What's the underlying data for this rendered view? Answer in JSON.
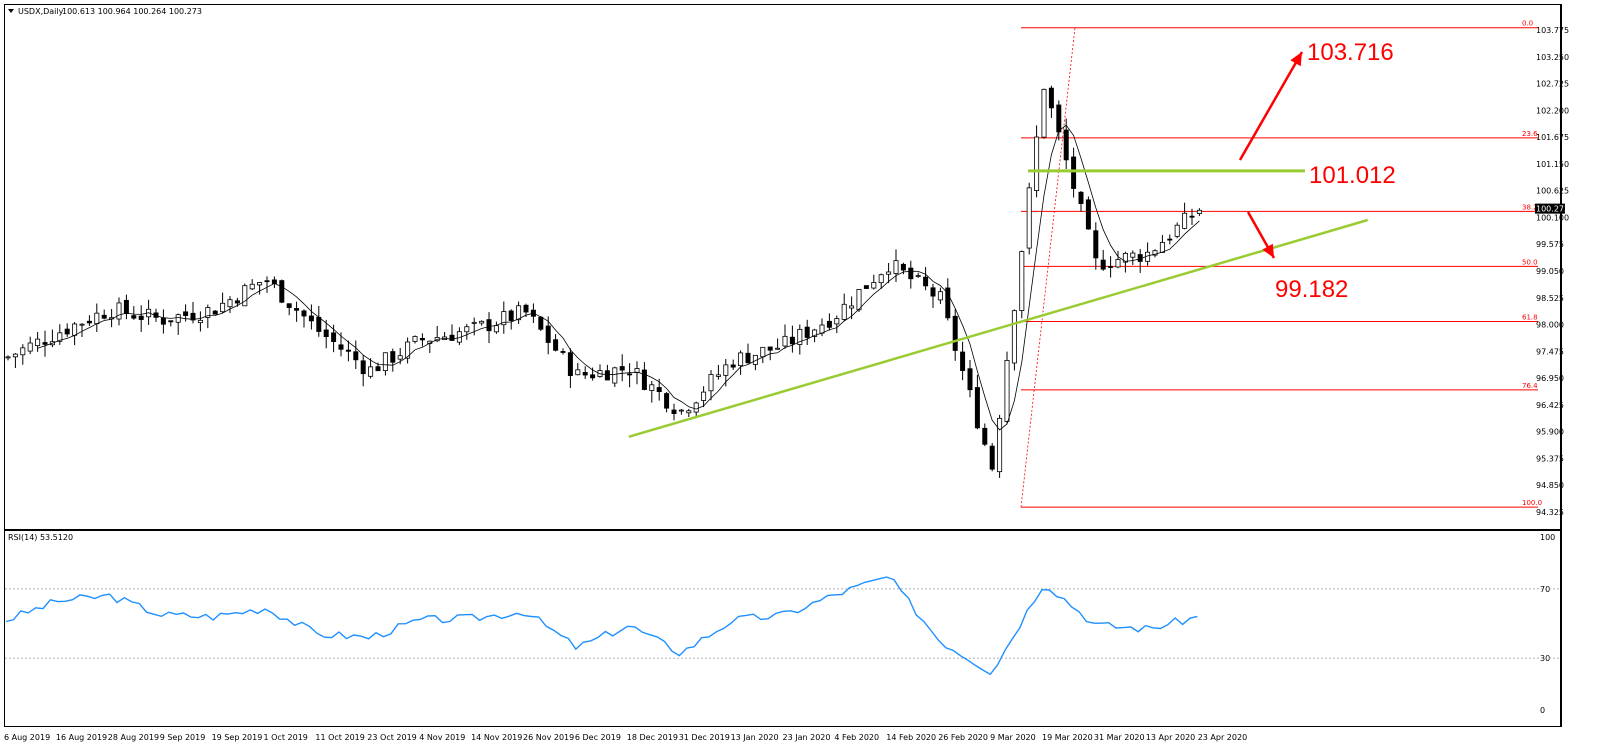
{
  "header": {
    "symbol_info": "USDX,Daily",
    "ohlc": "100.613 100.964 100.264 100.273"
  },
  "rsi_header": {
    "label": "RSI(14) 53.5120"
  },
  "price_axis": {
    "ticks": [
      "103.775",
      "103.250",
      "102.725",
      "102.200",
      "101.675",
      "101.150",
      "100.625",
      "100.100",
      "99.575",
      "99.050",
      "98.525",
      "98.000",
      "97.475",
      "96.950",
      "96.425",
      "95.900",
      "95.375",
      "94.850",
      "94.325"
    ],
    "current_price": "100.273"
  },
  "rsi_axis": {
    "ticks": [
      "100",
      "70",
      "30",
      "0"
    ]
  },
  "date_axis": {
    "ticks": [
      "6 Aug 2019",
      "16 Aug 2019",
      "28 Aug 2019",
      "9 Sep 2019",
      "19 Sep 2019",
      "1 Oct 2019",
      "11 Oct 2019",
      "23 Oct 2019",
      "4 Nov 2019",
      "14 Nov 2019",
      "26 Nov 2019",
      "6 Dec 2019",
      "18 Dec 2019",
      "31 Dec 2019",
      "13 Jan 2020",
      "23 Jan 2020",
      "4 Feb 2020",
      "14 Feb 2020",
      "26 Feb 2020",
      "9 Mar 2020",
      "19 Mar 2020",
      "31 Mar 2020",
      "13 Apr 2020",
      "23 Apr 2020"
    ]
  },
  "fibonacci": {
    "levels": [
      "0.0",
      "23.6",
      "38.2",
      "50.0",
      "61.8",
      "76.4",
      "100.0"
    ],
    "prices": [
      103.82,
      101.66,
      100.22,
      99.14,
      98.06,
      96.72,
      94.42
    ]
  },
  "annotations": {
    "target_up": "103.716",
    "resistance": "101.012",
    "target_down": "99.182"
  },
  "colors": {
    "fib": "#ff0000",
    "arrow": "#ff0000",
    "trend": "#99cc33",
    "rsi": "#1e90ff",
    "candle": "#000000"
  },
  "chart_data": [
    {
      "type": "candlestick",
      "title": "USDX,Daily",
      "ylim": [
        94.325,
        103.775
      ],
      "x_start": "6 Aug 2019",
      "x_end": "23 Apr 2020",
      "close_anchors": [
        {
          "date": "6 Aug 2019",
          "value": 97.35
        },
        {
          "date": "16 Aug 2019",
          "value": 97.85
        },
        {
          "date": "28 Aug 2019",
          "value": 98.3
        },
        {
          "date": "9 Sep 2019",
          "value": 98.1
        },
        {
          "date": "19 Sep 2019",
          "value": 98.3
        },
        {
          "date": "1 Oct 2019",
          "value": 98.9
        },
        {
          "date": "11 Oct 2019",
          "value": 97.9
        },
        {
          "date": "23 Oct 2019",
          "value": 97.1
        },
        {
          "date": "4 Nov 2019",
          "value": 97.7
        },
        {
          "date": "14 Nov 2019",
          "value": 97.9
        },
        {
          "date": "26 Nov 2019",
          "value": 98.25
        },
        {
          "date": "6 Dec 2019",
          "value": 97.0
        },
        {
          "date": "18 Dec 2019",
          "value": 97.15
        },
        {
          "date": "31 Dec 2019",
          "value": 96.3
        },
        {
          "date": "13 Jan 2020",
          "value": 97.3
        },
        {
          "date": "23 Jan 2020",
          "value": 97.6
        },
        {
          "date": "4 Feb 2020",
          "value": 98.2
        },
        {
          "date": "14 Feb 2020",
          "value": 99.2
        },
        {
          "date": "26 Feb 2020",
          "value": 98.5
        },
        {
          "date": "9 Mar 2020",
          "value": 95.2
        },
        {
          "date": "19 Mar 2020",
          "value": 102.7
        },
        {
          "date": "31 Mar 2020",
          "value": 99.2
        },
        {
          "date": "13 Apr 2020",
          "value": 99.4
        },
        {
          "date": "23 Apr 2020",
          "value": 100.27
        }
      ],
      "trendline": {
        "start": {
          "date": "18 Dec 2019",
          "value": 95.8
        },
        "end": {
          "date": "6 May 2020",
          "value": 100.05
        }
      },
      "horizontal_level": {
        "value": 101.012
      }
    },
    {
      "type": "line",
      "title": "RSI(14) 53.5120",
      "ylim": [
        0,
        100
      ],
      "levels": [
        30,
        70
      ],
      "anchors": [
        {
          "date": "6 Aug 2019",
          "value": 52
        },
        {
          "date": "16 Aug 2019",
          "value": 63
        },
        {
          "date": "28 Aug 2019",
          "value": 66
        },
        {
          "date": "9 Sep 2019",
          "value": 55
        },
        {
          "date": "19 Sep 2019",
          "value": 54
        },
        {
          "date": "1 Oct 2019",
          "value": 59
        },
        {
          "date": "11 Oct 2019",
          "value": 44
        },
        {
          "date": "23 Oct 2019",
          "value": 42
        },
        {
          "date": "4 Nov 2019",
          "value": 52
        },
        {
          "date": "14 Nov 2019",
          "value": 53
        },
        {
          "date": "26 Nov 2019",
          "value": 57
        },
        {
          "date": "6 Dec 2019",
          "value": 36
        },
        {
          "date": "18 Dec 2019",
          "value": 49
        },
        {
          "date": "31 Dec 2019",
          "value": 33
        },
        {
          "date": "13 Jan 2020",
          "value": 52
        },
        {
          "date": "23 Jan 2020",
          "value": 55
        },
        {
          "date": "4 Feb 2020",
          "value": 67
        },
        {
          "date": "14 Feb 2020",
          "value": 77
        },
        {
          "date": "26 Feb 2020",
          "value": 40
        },
        {
          "date": "9 Mar 2020",
          "value": 22
        },
        {
          "date": "19 Mar 2020",
          "value": 74
        },
        {
          "date": "31 Mar 2020",
          "value": 49
        },
        {
          "date": "13 Apr 2020",
          "value": 47
        },
        {
          "date": "23 Apr 2020",
          "value": 54
        }
      ]
    }
  ]
}
